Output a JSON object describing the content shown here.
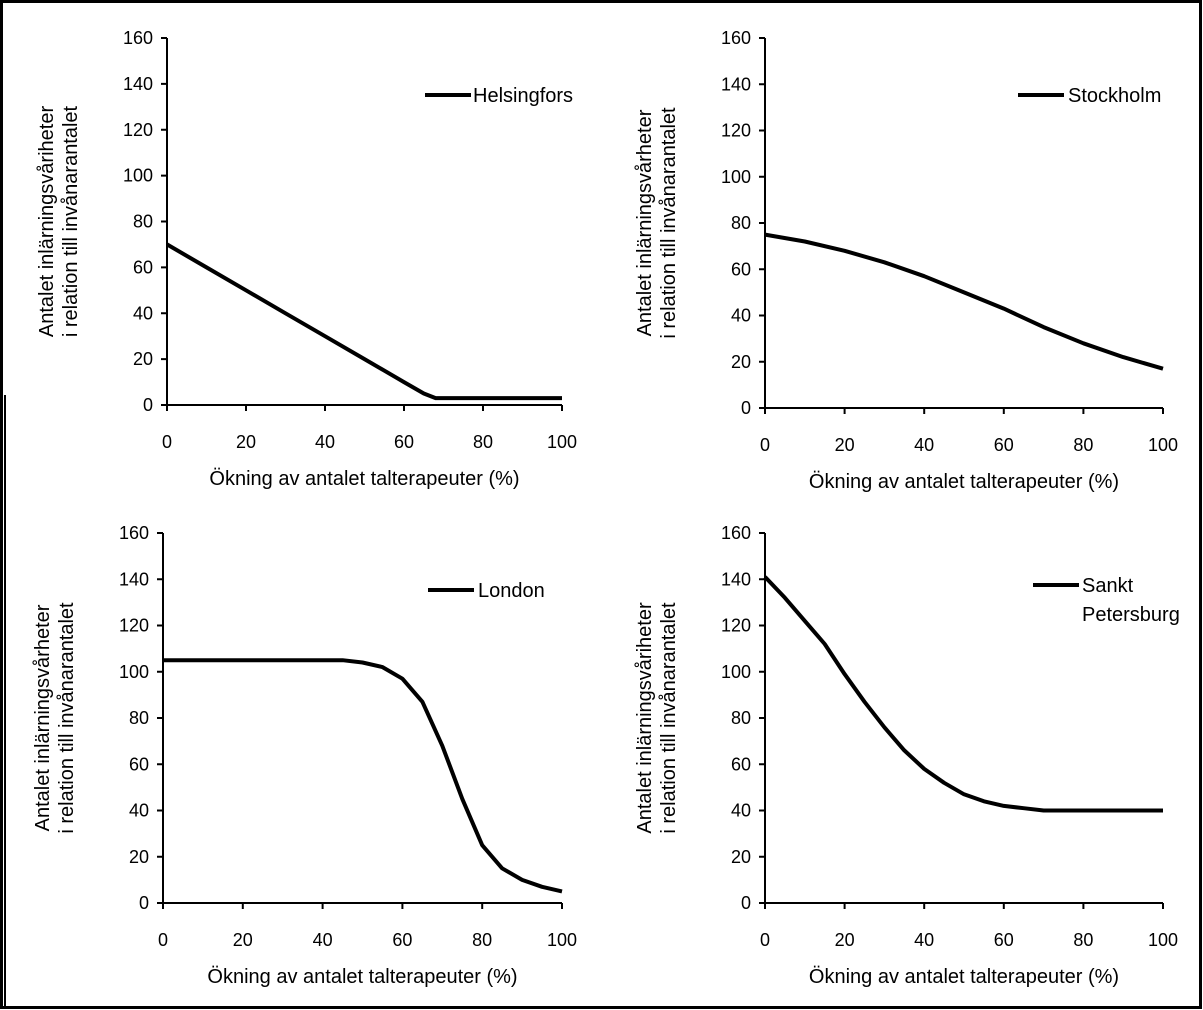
{
  "chart_data": [
    {
      "type": "line",
      "xlabel": "Ökning av antalet talterapeuter (%)",
      "ylabel_lines": [
        "Antalet inlärningsvåriheter",
        "i relation till invånarantalet"
      ],
      "xlim": [
        0,
        100
      ],
      "ylim": [
        0,
        160
      ],
      "xticks": [
        0,
        20,
        40,
        60,
        80,
        100
      ],
      "yticks": [
        0,
        20,
        40,
        60,
        80,
        100,
        120,
        140,
        160
      ],
      "grid": false,
      "legend_position": "top-right",
      "series": [
        {
          "name_lines": [
            "Helsingfors"
          ],
          "x": [
            0,
            10,
            20,
            30,
            40,
            50,
            60,
            65,
            68,
            70,
            80,
            90,
            100
          ],
          "y": [
            70,
            60,
            50,
            40,
            30,
            20,
            10,
            5,
            3,
            3,
            3,
            3,
            3
          ]
        }
      ]
    },
    {
      "type": "line",
      "xlabel": "Ökning av antalet talterapeuter (%)",
      "ylabel_lines": [
        "Antalet inlärningsvårheter",
        "i relation till invånarantalet"
      ],
      "xlim": [
        0,
        100
      ],
      "ylim": [
        0,
        160
      ],
      "xticks": [
        0,
        20,
        40,
        60,
        80,
        100
      ],
      "yticks": [
        0,
        20,
        40,
        60,
        80,
        100,
        120,
        140,
        160
      ],
      "grid": false,
      "legend_position": "top-right",
      "series": [
        {
          "name_lines": [
            "Stockholm"
          ],
          "x": [
            0,
            10,
            20,
            30,
            40,
            50,
            60,
            70,
            80,
            90,
            100
          ],
          "y": [
            75,
            72,
            68,
            63,
            57,
            50,
            43,
            35,
            28,
            22,
            17
          ]
        }
      ]
    },
    {
      "type": "line",
      "xlabel": "Ökning av antalet talterapeuter (%)",
      "ylabel_lines": [
        "Antalet inlärningsvårheter",
        "i relation till invånarantalet"
      ],
      "xlim": [
        0,
        100
      ],
      "ylim": [
        0,
        160
      ],
      "xticks": [
        0,
        20,
        40,
        60,
        80,
        100
      ],
      "yticks": [
        0,
        20,
        40,
        60,
        80,
        100,
        120,
        140,
        160
      ],
      "grid": false,
      "legend_position": "top-right",
      "series": [
        {
          "name_lines": [
            "London"
          ],
          "x": [
            0,
            10,
            20,
            30,
            40,
            45,
            50,
            55,
            60,
            65,
            70,
            75,
            80,
            85,
            90,
            95,
            100
          ],
          "y": [
            105,
            105,
            105,
            105,
            105,
            105,
            104,
            102,
            97,
            87,
            68,
            45,
            25,
            15,
            10,
            7,
            5
          ]
        }
      ]
    },
    {
      "type": "line",
      "xlabel": "Ökning av antalet talterapeuter (%)",
      "ylabel_lines": [
        "Antalet inlärningsvåriheter",
        "i relation till invånarantalet"
      ],
      "xlim": [
        0,
        100
      ],
      "ylim": [
        0,
        160
      ],
      "xticks": [
        0,
        20,
        40,
        60,
        80,
        100
      ],
      "yticks": [
        0,
        20,
        40,
        60,
        80,
        100,
        120,
        140,
        160
      ],
      "grid": false,
      "legend_position": "top-right",
      "series": [
        {
          "name_lines": [
            "Sankt",
            "Petersburg"
          ],
          "x": [
            0,
            5,
            10,
            15,
            20,
            25,
            30,
            35,
            40,
            45,
            50,
            55,
            60,
            65,
            70,
            80,
            90,
            100
          ],
          "y": [
            141,
            132,
            122,
            112,
            99,
            87,
            76,
            66,
            58,
            52,
            47,
            44,
            42,
            41,
            40,
            40,
            40,
            40
          ]
        }
      ]
    }
  ]
}
